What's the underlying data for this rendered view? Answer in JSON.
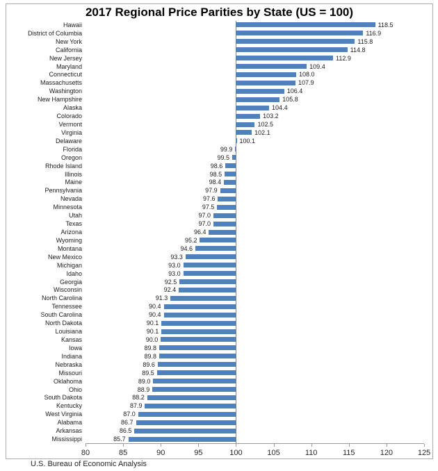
{
  "chart_data": {
    "type": "bar",
    "orientation": "horizontal",
    "title": "2017 Regional Price Parities by State (US = 100)",
    "baseline": 100,
    "xlim": [
      80,
      125
    ],
    "x_ticks": [
      80,
      85,
      90,
      95,
      100,
      105,
      110,
      115,
      120,
      125
    ],
    "bar_color": "#4f81bd",
    "grid": "baseline-only",
    "legend": "none",
    "categories": [
      "Hawaii",
      "District of Columbia",
      "New York",
      "California",
      "New Jersey",
      "Maryland",
      "Connecticut",
      "Massachusetts",
      "Washington",
      "New Hampshire",
      "Alaska",
      "Colorado",
      "Vermont",
      "Virginia",
      "Delaware",
      "Florida",
      "Oregon",
      "Rhode Island",
      "Illinois",
      "Maine",
      "Pennsylvania",
      "Nevada",
      "Minnesota",
      "Utah",
      "Texas",
      "Arizona",
      "Wyoming",
      "Montana",
      "New Mexico",
      "Michigan",
      "Idaho",
      "Georgia",
      "Wisconsin",
      "North Carolina",
      "Tennessee",
      "South Carolina",
      "North Dakota",
      "Louisiana",
      "Kansas",
      "Iowa",
      "Indiana",
      "Nebraska",
      "Missouri",
      "Oklahoma",
      "Ohio",
      "South Dakota",
      "Kentucky",
      "West Virginia",
      "Alabama",
      "Arkansas",
      "Mississippi"
    ],
    "values": [
      118.5,
      116.9,
      115.8,
      114.8,
      112.9,
      109.4,
      108.0,
      107.9,
      106.4,
      105.8,
      104.4,
      103.2,
      102.5,
      102.1,
      100.1,
      99.9,
      99.5,
      98.6,
      98.5,
      98.4,
      97.9,
      97.6,
      97.5,
      97.0,
      97.0,
      96.4,
      95.2,
      94.6,
      93.3,
      93.0,
      93.0,
      92.5,
      92.4,
      91.3,
      90.4,
      90.4,
      90.1,
      90.1,
      90.0,
      89.8,
      89.8,
      89.6,
      89.5,
      89.0,
      88.9,
      88.2,
      87.9,
      87.0,
      86.7,
      86.5,
      85.7
    ]
  },
  "footer": {
    "source": "U.S. Bureau of Economic Analysis"
  }
}
